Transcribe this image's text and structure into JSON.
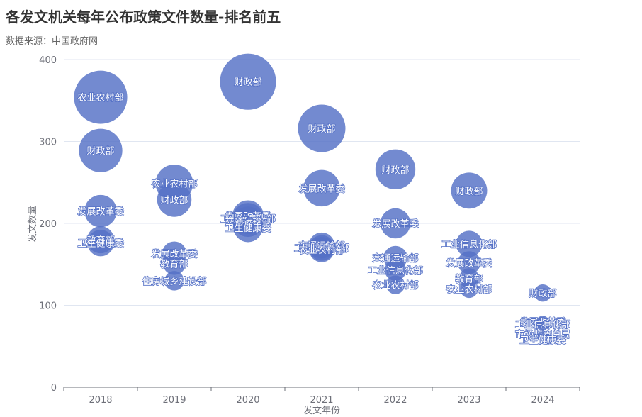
{
  "chart_data": {
    "type": "scatter",
    "title": "各发文机关每年公布政策文件数量-排名前五",
    "subtitle": "数据来源：中国政府网",
    "xlabel": "发文年份",
    "ylabel": "发文数量",
    "categories": [
      "2018",
      "2019",
      "2020",
      "2021",
      "2022",
      "2023",
      "2024"
    ],
    "yticks": [
      0,
      100,
      200,
      300,
      400
    ],
    "ylim": [
      0,
      400
    ],
    "color": "#5470c6",
    "points": [
      {
        "x": "2018",
        "y": 354,
        "label": "农业农村部"
      },
      {
        "x": "2018",
        "y": 289,
        "label": "财政部"
      },
      {
        "x": "2018",
        "y": 215,
        "label": "发展改革委"
      },
      {
        "x": "2018",
        "y": 180,
        "label": "教育部"
      },
      {
        "x": "2018",
        "y": 176,
        "label": "卫生健康委"
      },
      {
        "x": "2019",
        "y": 249,
        "label": "农业农村部"
      },
      {
        "x": "2019",
        "y": 229,
        "label": "财政部"
      },
      {
        "x": "2019",
        "y": 163,
        "label": "发展改革委"
      },
      {
        "x": "2019",
        "y": 151,
        "label": "教育部"
      },
      {
        "x": "2019",
        "y": 130,
        "label": "住房城乡建设部"
      },
      {
        "x": "2020",
        "y": 373,
        "label": "财政部"
      },
      {
        "x": "2020",
        "y": 209,
        "label": "发展改革委"
      },
      {
        "x": "2020",
        "y": 206,
        "label": "工业信息化部"
      },
      {
        "x": "2020",
        "y": 202,
        "label": "交通运输部"
      },
      {
        "x": "2020",
        "y": 195,
        "label": "卫生健康委"
      },
      {
        "x": "2021",
        "y": 316,
        "label": "财政部"
      },
      {
        "x": "2021",
        "y": 243,
        "label": "发展改革委"
      },
      {
        "x": "2021",
        "y": 173,
        "label": "交通运输部"
      },
      {
        "x": "2021",
        "y": 170,
        "label": "工业信息化部"
      },
      {
        "x": "2021",
        "y": 168,
        "label": "农业农村部"
      },
      {
        "x": "2022",
        "y": 266,
        "label": "财政部"
      },
      {
        "x": "2022",
        "y": 200,
        "label": "发展改革委"
      },
      {
        "x": "2022",
        "y": 158,
        "label": "交通运输部"
      },
      {
        "x": "2022",
        "y": 143,
        "label": "工业信息化部"
      },
      {
        "x": "2022",
        "y": 125,
        "label": "农业农村部"
      },
      {
        "x": "2023",
        "y": 240,
        "label": "财政部"
      },
      {
        "x": "2023",
        "y": 175,
        "label": "工业信息化部"
      },
      {
        "x": "2023",
        "y": 152,
        "label": "发展改革委"
      },
      {
        "x": "2023",
        "y": 133,
        "label": "教育部"
      },
      {
        "x": "2023",
        "y": 120,
        "label": "农业农村部"
      },
      {
        "x": "2024",
        "y": 115,
        "label": "财政部"
      },
      {
        "x": "2024",
        "y": 80,
        "label": "发展改革委"
      },
      {
        "x": "2024",
        "y": 77,
        "label": "工业信息化部"
      },
      {
        "x": "2024",
        "y": 65,
        "label": "市场监管总局"
      },
      {
        "x": "2024",
        "y": 58,
        "label": "卫生健康委"
      }
    ]
  }
}
